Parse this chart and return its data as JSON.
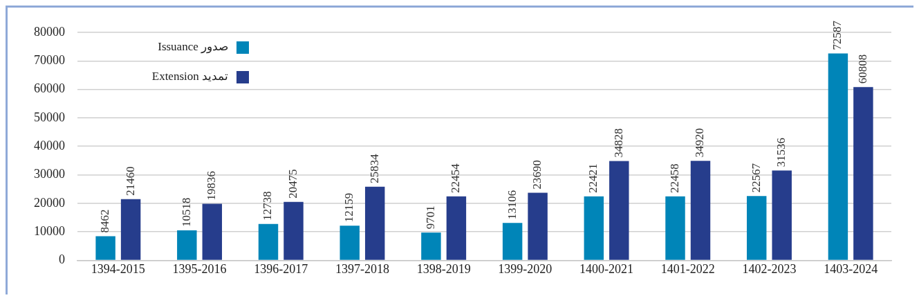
{
  "chart_data": {
    "type": "bar",
    "categories": [
      "1394-2015",
      "1395-2016",
      "1396-2017",
      "1397-2018",
      "1398-2019",
      "1399-2020",
      "1400-2021",
      "1401-2022",
      "1402-2023",
      "1403-2024"
    ],
    "series": [
      {
        "name": "Issuance صدور",
        "color": "#0085b8",
        "values": [
          8462,
          10518,
          12738,
          12159,
          9701,
          13106,
          22421,
          22458,
          22567,
          72587
        ]
      },
      {
        "name": "Extension تمدید",
        "color": "#263d8c",
        "values": [
          21460,
          19836,
          20475,
          25834,
          22454,
          23690,
          34828,
          34920,
          31536,
          60808
        ]
      }
    ],
    "ylim": [
      0,
      80000
    ],
    "yticks": [
      0,
      10000,
      20000,
      30000,
      40000,
      50000,
      60000,
      70000,
      80000
    ],
    "grid": "y",
    "legend": "top left",
    "data_labels": true
  }
}
